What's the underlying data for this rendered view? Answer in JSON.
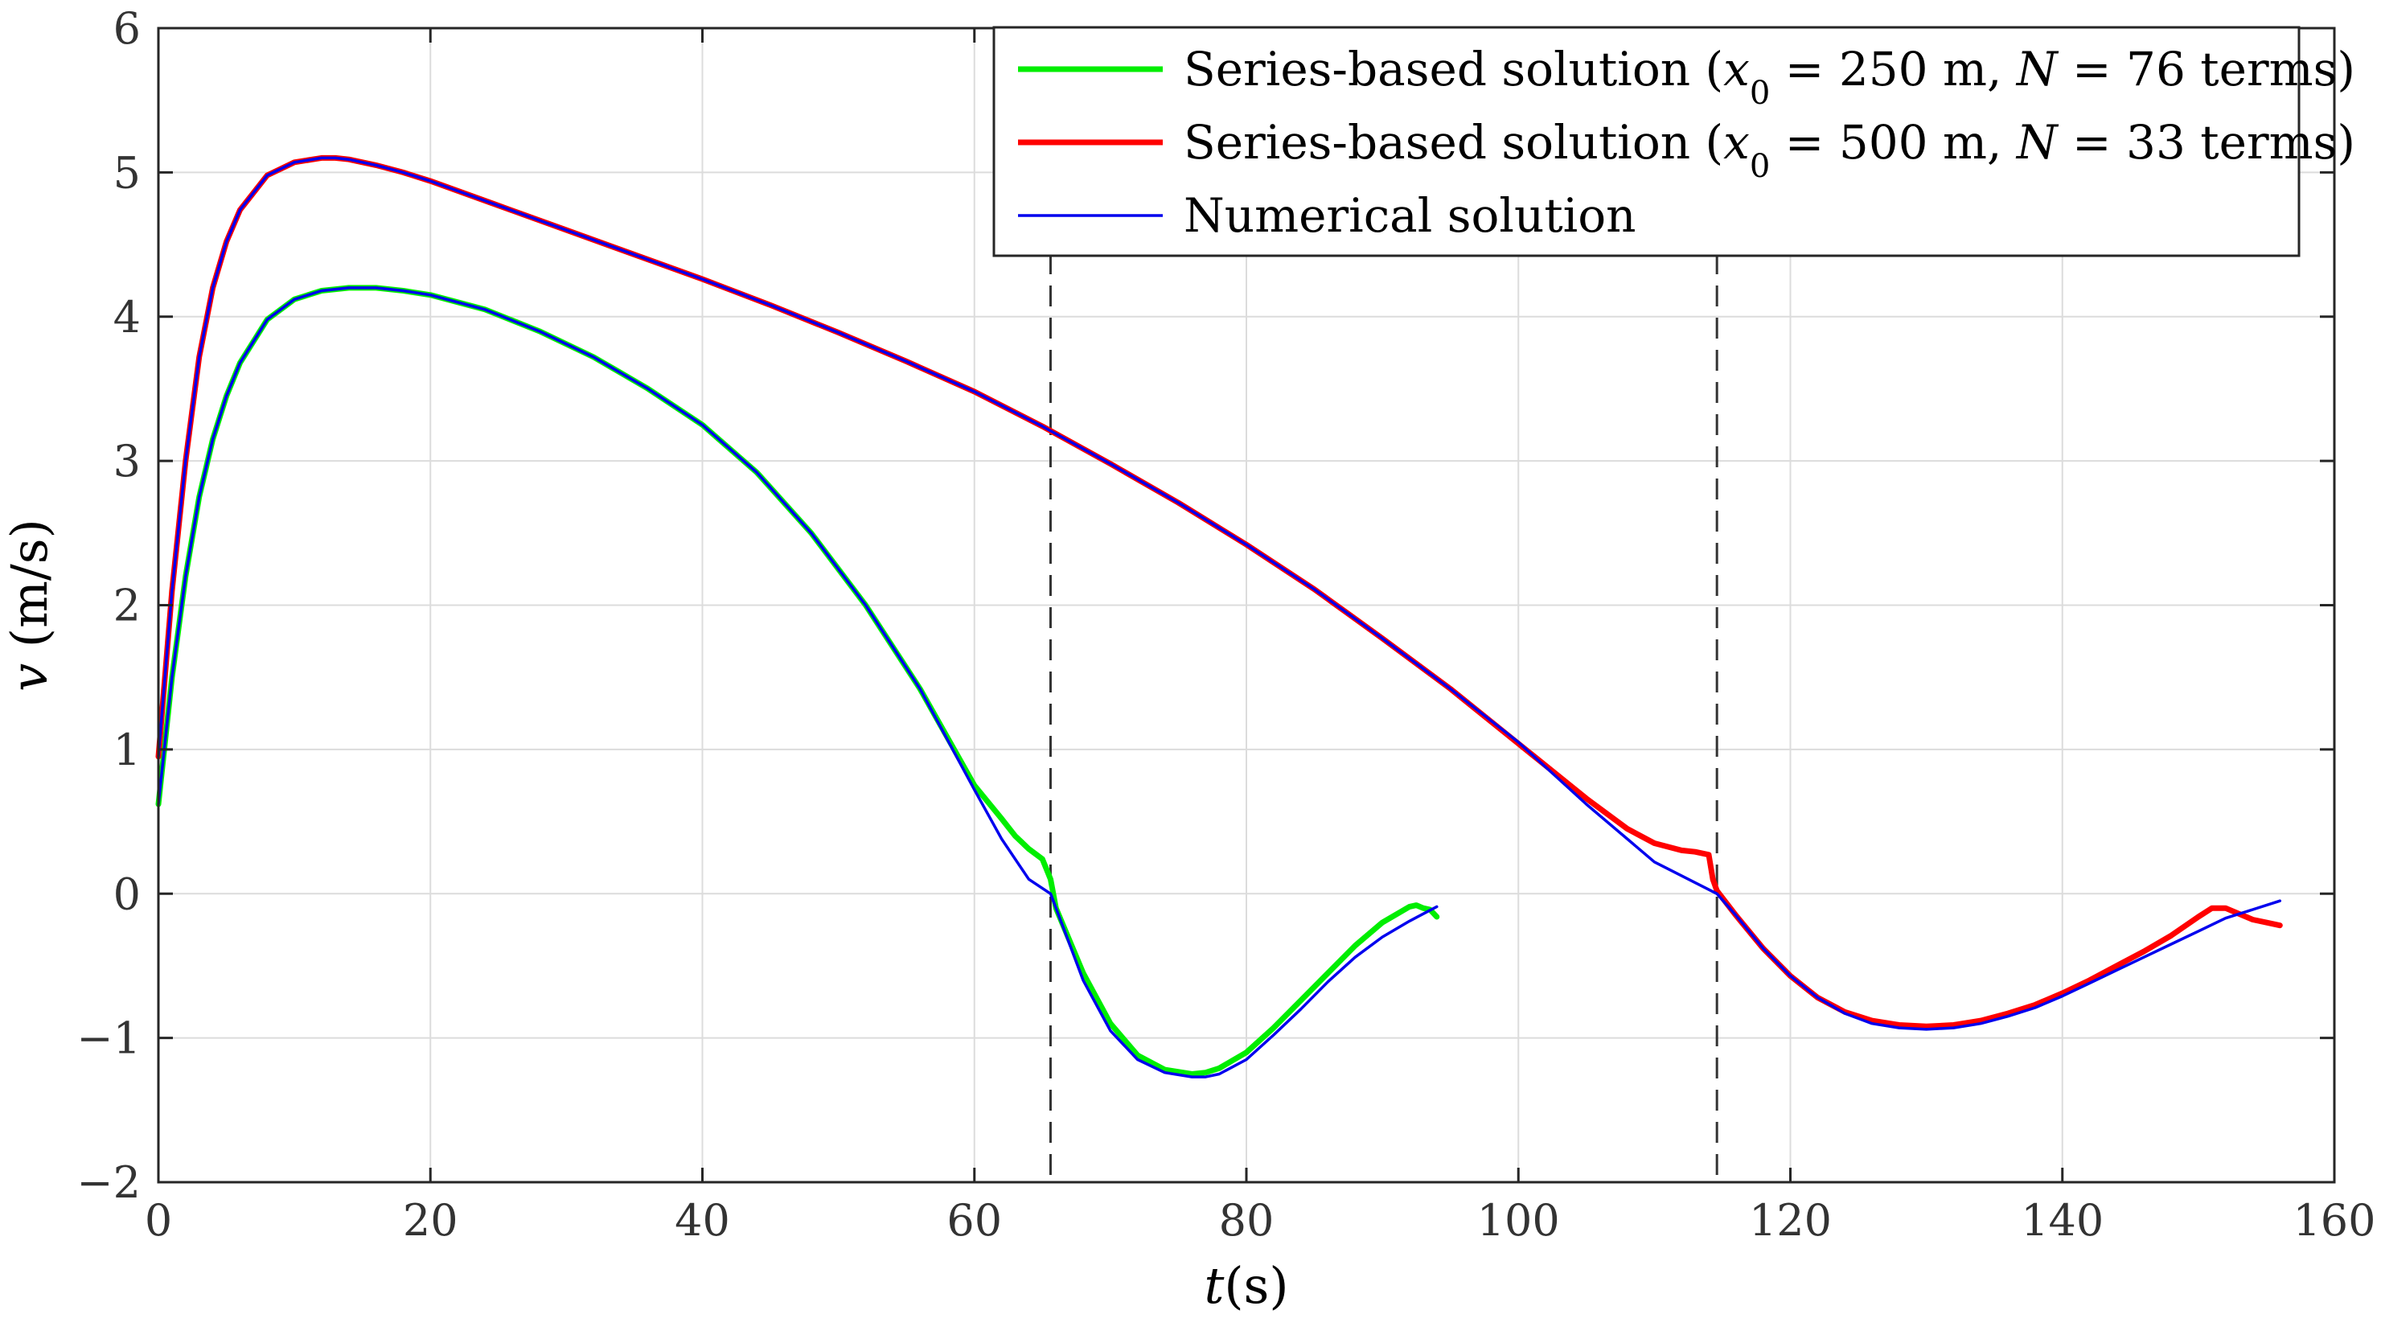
{
  "chart_data": {
    "type": "line",
    "title": "",
    "xlabel": "t(s)",
    "ylabel": "v (m/s)",
    "xlim": [
      0,
      160
    ],
    "ylim": [
      -2,
      6
    ],
    "grid": true,
    "legend_position": "top-right",
    "x_ticks": [
      {
        "value": 0,
        "label": "0"
      },
      {
        "value": 20,
        "label": "20"
      },
      {
        "value": 40,
        "label": "40"
      },
      {
        "value": 60,
        "label": "60"
      },
      {
        "value": 80,
        "label": "80"
      },
      {
        "value": 100,
        "label": "100"
      },
      {
        "value": 120,
        "label": "120"
      },
      {
        "value": 140,
        "label": "140"
      },
      {
        "value": 160,
        "label": "160"
      }
    ],
    "y_ticks": [
      {
        "value": -2,
        "label": "−2"
      },
      {
        "value": -1,
        "label": "−1"
      },
      {
        "value": 0,
        "label": "0"
      },
      {
        "value": 1,
        "label": "1"
      },
      {
        "value": 2,
        "label": "2"
      },
      {
        "value": 3,
        "label": "3"
      },
      {
        "value": 4,
        "label": "4"
      },
      {
        "value": 5,
        "label": "5"
      },
      {
        "value": 6,
        "label": "6"
      }
    ],
    "vertical_lines": [
      65.6,
      114.6
    ],
    "series": [
      {
        "name": "series-250",
        "legend": {
          "prefix": "Series-based solution (",
          "var": "x",
          "sub": "0",
          "mid": " = 250 m, ",
          "n_var": "N",
          "suffix": " = 76 terms)"
        },
        "color": "#00ee00",
        "width": 7,
        "x": [
          0,
          1,
          2,
          3,
          4,
          5,
          6,
          8,
          10,
          12,
          14,
          16,
          18,
          20,
          24,
          28,
          32,
          36,
          40,
          44,
          48,
          52,
          56,
          60,
          62,
          63,
          64,
          65,
          65.6,
          66,
          68,
          70,
          72,
          74,
          76,
          77,
          78,
          80,
          82,
          84,
          86,
          88,
          90,
          92,
          92.5,
          93,
          93.5,
          94
        ],
        "y": [
          0.62,
          1.5,
          2.2,
          2.75,
          3.15,
          3.45,
          3.68,
          3.98,
          4.12,
          4.18,
          4.2,
          4.2,
          4.18,
          4.15,
          4.05,
          3.9,
          3.72,
          3.5,
          3.25,
          2.92,
          2.5,
          2.0,
          1.42,
          0.75,
          0.52,
          0.4,
          0.31,
          0.24,
          0.1,
          -0.1,
          -0.55,
          -0.9,
          -1.12,
          -1.22,
          -1.25,
          -1.24,
          -1.21,
          -1.1,
          -0.93,
          -0.74,
          -0.55,
          -0.36,
          -0.2,
          -0.09,
          -0.08,
          -0.1,
          -0.11,
          -0.16
        ]
      },
      {
        "name": "series-500",
        "legend": {
          "prefix": "Series-based solution (",
          "var": "x",
          "sub": "0",
          "mid": " = 500 m, ",
          "n_var": "N",
          "suffix": " = 33 terms)"
        },
        "color": "#ff0000",
        "width": 7,
        "x": [
          0,
          1,
          2,
          3,
          4,
          5,
          6,
          8,
          10,
          12,
          13,
          14,
          16,
          18,
          20,
          25,
          30,
          35,
          40,
          45,
          50,
          55,
          60,
          65,
          70,
          75,
          80,
          85,
          90,
          95,
          100,
          105,
          108,
          110,
          112,
          113,
          114,
          114.3,
          114.6,
          116,
          118,
          120,
          122,
          124,
          126,
          128,
          130,
          132,
          134,
          136,
          138,
          140,
          142,
          144,
          146,
          148,
          150,
          151,
          152,
          153,
          154,
          155,
          156
        ],
        "y": [
          0.95,
          2.1,
          3.0,
          3.72,
          4.2,
          4.52,
          4.74,
          4.98,
          5.07,
          5.1,
          5.1,
          5.09,
          5.05,
          5.0,
          4.94,
          4.77,
          4.6,
          4.43,
          4.26,
          4.08,
          3.89,
          3.69,
          3.48,
          3.24,
          2.98,
          2.71,
          2.42,
          2.11,
          1.77,
          1.42,
          1.04,
          0.66,
          0.45,
          0.35,
          0.3,
          0.29,
          0.27,
          0.1,
          0.02,
          -0.15,
          -0.38,
          -0.57,
          -0.72,
          -0.82,
          -0.88,
          -0.91,
          -0.92,
          -0.91,
          -0.88,
          -0.83,
          -0.77,
          -0.69,
          -0.6,
          -0.5,
          -0.4,
          -0.29,
          -0.16,
          -0.1,
          -0.1,
          -0.14,
          -0.18,
          -0.2,
          -0.22
        ]
      },
      {
        "name": "numerical",
        "legend": {
          "prefix": "Numerical solution",
          "var": "",
          "sub": "",
          "mid": "",
          "n_var": "",
          "suffix": ""
        },
        "color": "#0000ee",
        "width": 3.5,
        "x": [
          0,
          1,
          2,
          3,
          4,
          5,
          6,
          8,
          10,
          12,
          13,
          14,
          16,
          18,
          20,
          25,
          30,
          35,
          40,
          45,
          50,
          55,
          60,
          65,
          70,
          75,
          80,
          85,
          90,
          95,
          100,
          105,
          110,
          114.6,
          116,
          118,
          120,
          122,
          124,
          126,
          128,
          130,
          132,
          134,
          136,
          138,
          140,
          142,
          144,
          146,
          148,
          150,
          152,
          154,
          156
        ],
        "y": [
          0.95,
          2.1,
          3.0,
          3.72,
          4.2,
          4.52,
          4.74,
          4.98,
          5.07,
          5.1,
          5.1,
          5.09,
          5.05,
          5.0,
          4.94,
          4.77,
          4.6,
          4.43,
          4.26,
          4.08,
          3.89,
          3.69,
          3.48,
          3.24,
          2.98,
          2.71,
          2.42,
          2.11,
          1.77,
          1.42,
          1.05,
          0.62,
          0.22,
          0.0,
          -0.15,
          -0.38,
          -0.57,
          -0.72,
          -0.83,
          -0.9,
          -0.93,
          -0.94,
          -0.93,
          -0.9,
          -0.85,
          -0.79,
          -0.71,
          -0.62,
          -0.53,
          -0.44,
          -0.35,
          -0.26,
          -0.17,
          -0.11,
          -0.05
        ]
      },
      {
        "name": "numerical-250",
        "legend": null,
        "color": "#0000ee",
        "width": 3.5,
        "x": [
          0,
          1,
          2,
          3,
          4,
          5,
          6,
          8,
          10,
          12,
          14,
          16,
          18,
          20,
          24,
          28,
          32,
          36,
          40,
          44,
          48,
          52,
          56,
          60,
          62,
          64,
          65.6,
          68,
          70,
          72,
          74,
          76,
          77,
          78,
          80,
          82,
          84,
          86,
          88,
          90,
          92,
          94
        ],
        "y": [
          0.62,
          1.5,
          2.2,
          2.75,
          3.15,
          3.45,
          3.68,
          3.98,
          4.12,
          4.18,
          4.2,
          4.2,
          4.18,
          4.15,
          4.05,
          3.9,
          3.72,
          3.5,
          3.25,
          2.92,
          2.5,
          2.0,
          1.42,
          0.72,
          0.38,
          0.1,
          0.0,
          -0.6,
          -0.95,
          -1.15,
          -1.24,
          -1.27,
          -1.27,
          -1.25,
          -1.15,
          -0.98,
          -0.8,
          -0.61,
          -0.44,
          -0.3,
          -0.19,
          -0.09
        ]
      }
    ]
  }
}
